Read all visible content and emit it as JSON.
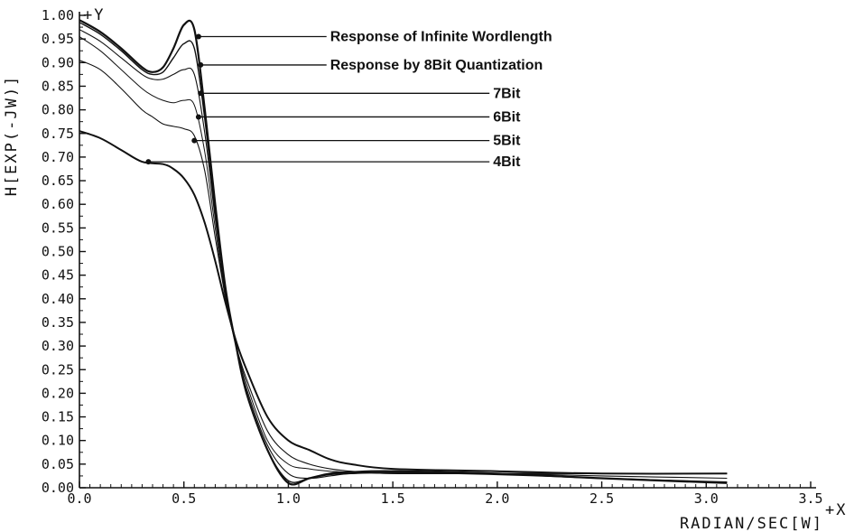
{
  "chart_data": {
    "type": "line",
    "xlabel": "RADIAN/SEC[W]",
    "ylabel": "H[EXP(-JW)]",
    "x_axis_marker": "+X",
    "y_axis_marker": "+Y",
    "xlim": [
      0,
      3.5
    ],
    "ylim": [
      0,
      1.0
    ],
    "xticks": [
      0.0,
      0.5,
      1.0,
      1.5,
      2.0,
      2.5,
      3.0,
      3.5
    ],
    "xtick_labels": [
      "0.0",
      "0.5",
      "1.0",
      "1.5",
      "2.0",
      "2.5",
      "3.0",
      "3.5"
    ],
    "yticks": [
      0.0,
      0.05,
      0.1,
      0.15,
      0.2,
      0.25,
      0.3,
      0.35,
      0.4,
      0.45,
      0.5,
      0.55,
      0.6,
      0.65,
      0.7,
      0.75,
      0.8,
      0.85,
      0.9,
      0.95,
      1.0
    ],
    "ytick_labels": [
      "0.00",
      "0.05",
      "0.10",
      "0.15",
      "0.20",
      "0.25",
      "0.30",
      "0.35",
      "0.40",
      "0.45",
      "0.50",
      "0.55",
      "0.60",
      "0.65",
      "0.70",
      "0.75",
      "0.80",
      "0.85",
      "0.90",
      "0.95",
      "1.00"
    ],
    "grid": false,
    "line_color": "#111111",
    "series": [
      {
        "name": "Response of Infinite Wordlength",
        "x": [
          0.0,
          0.1,
          0.2,
          0.3,
          0.35,
          0.4,
          0.45,
          0.5,
          0.55,
          0.6,
          0.65,
          0.7,
          0.75,
          0.8,
          0.9,
          1.0,
          1.1,
          1.2,
          1.3,
          1.5,
          2.0,
          2.5,
          3.1
        ],
        "y": [
          0.99,
          0.965,
          0.93,
          0.89,
          0.88,
          0.89,
          0.93,
          0.98,
          0.97,
          0.8,
          0.6,
          0.42,
          0.3,
          0.2,
          0.08,
          0.01,
          0.02,
          0.03,
          0.033,
          0.035,
          0.03,
          0.02,
          0.01
        ]
      },
      {
        "name": "Response by 8Bit Quantization",
        "x": [
          0.0,
          0.1,
          0.2,
          0.3,
          0.35,
          0.4,
          0.45,
          0.5,
          0.55,
          0.6,
          0.65,
          0.7,
          0.75,
          0.8,
          0.9,
          1.0,
          1.1,
          1.2,
          1.3,
          1.5,
          2.0,
          2.5,
          3.1
        ],
        "y": [
          0.985,
          0.96,
          0.925,
          0.885,
          0.875,
          0.88,
          0.91,
          0.94,
          0.93,
          0.78,
          0.58,
          0.41,
          0.3,
          0.2,
          0.08,
          0.015,
          0.02,
          0.028,
          0.03,
          0.032,
          0.028,
          0.02,
          0.012
        ]
      },
      {
        "name": "7Bit",
        "x": [
          0.0,
          0.1,
          0.2,
          0.3,
          0.35,
          0.4,
          0.45,
          0.5,
          0.55,
          0.6,
          0.65,
          0.7,
          0.75,
          0.8,
          0.9,
          1.0,
          1.1,
          1.2,
          1.3,
          1.5,
          2.0,
          2.5,
          3.1
        ],
        "y": [
          0.97,
          0.945,
          0.91,
          0.875,
          0.865,
          0.865,
          0.875,
          0.885,
          0.875,
          0.75,
          0.57,
          0.41,
          0.3,
          0.21,
          0.09,
          0.03,
          0.02,
          0.025,
          0.03,
          0.032,
          0.03,
          0.025,
          0.02
        ]
      },
      {
        "name": "6Bit",
        "x": [
          0.0,
          0.1,
          0.2,
          0.3,
          0.35,
          0.4,
          0.45,
          0.5,
          0.55,
          0.6,
          0.65,
          0.7,
          0.75,
          0.8,
          0.9,
          1.0,
          1.1,
          1.2,
          1.3,
          1.5,
          2.0,
          2.5,
          3.1
        ],
        "y": [
          0.955,
          0.925,
          0.885,
          0.845,
          0.83,
          0.82,
          0.815,
          0.82,
          0.81,
          0.71,
          0.55,
          0.4,
          0.3,
          0.22,
          0.1,
          0.05,
          0.04,
          0.035,
          0.033,
          0.03,
          0.03,
          0.03,
          0.03
        ]
      },
      {
        "name": "5Bit",
        "x": [
          0.0,
          0.1,
          0.2,
          0.3,
          0.35,
          0.4,
          0.45,
          0.5,
          0.55,
          0.6,
          0.65,
          0.7,
          0.75,
          0.8,
          0.9,
          1.0,
          1.1,
          1.2,
          1.3,
          1.5,
          2.0,
          2.5,
          3.1
        ],
        "y": [
          0.905,
          0.885,
          0.845,
          0.8,
          0.785,
          0.77,
          0.765,
          0.76,
          0.745,
          0.67,
          0.53,
          0.4,
          0.3,
          0.23,
          0.12,
          0.07,
          0.05,
          0.04,
          0.035,
          0.03,
          0.03,
          0.03,
          0.03
        ]
      },
      {
        "name": "4Bit",
        "x": [
          0.0,
          0.1,
          0.2,
          0.3,
          0.4,
          0.45,
          0.5,
          0.55,
          0.6,
          0.65,
          0.7,
          0.75,
          0.8,
          0.9,
          1.0,
          1.1,
          1.2,
          1.3,
          1.5,
          2.0,
          2.5,
          3.1
        ],
        "y": [
          0.755,
          0.74,
          0.715,
          0.69,
          0.685,
          0.675,
          0.655,
          0.62,
          0.56,
          0.48,
          0.39,
          0.31,
          0.25,
          0.15,
          0.1,
          0.08,
          0.06,
          0.05,
          0.04,
          0.035,
          0.03,
          0.03
        ]
      }
    ],
    "annotations": [
      {
        "text": "Response of Infinite Wordlength",
        "series": "Response of Infinite Wordlength",
        "point": [
          0.57,
          0.955
        ],
        "label_at": [
          1.2,
          0.955
        ]
      },
      {
        "text": "Response by 8Bit Quantization",
        "series": "Response by 8Bit Quantization",
        "point": [
          0.58,
          0.895
        ],
        "label_at": [
          1.2,
          0.895
        ]
      },
      {
        "text": "7Bit",
        "series": "7Bit",
        "point": [
          0.58,
          0.835
        ],
        "label_at": [
          1.98,
          0.835
        ]
      },
      {
        "text": "6Bit",
        "series": "6Bit",
        "point": [
          0.57,
          0.785
        ],
        "label_at": [
          1.98,
          0.785
        ]
      },
      {
        "text": "5Bit",
        "series": "5Bit",
        "point": [
          0.55,
          0.735
        ],
        "label_at": [
          1.98,
          0.735
        ]
      },
      {
        "text": "4Bit",
        "series": "4Bit",
        "point": [
          0.33,
          0.69
        ],
        "label_at": [
          1.98,
          0.69
        ]
      }
    ]
  }
}
